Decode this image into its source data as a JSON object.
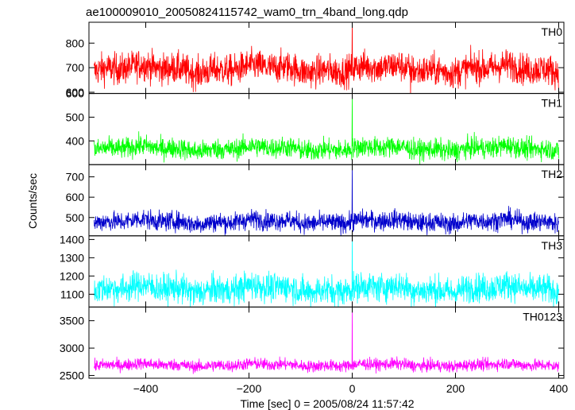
{
  "chart_data": {
    "type": "line",
    "title": "ae100009010_20050824115742_wam0_trn_4band_long.qdp",
    "xlabel": "Time [sec] 0 = 2005/08/24 11:57:42",
    "ylabel": "Counts/sec",
    "xlim": [
      -510,
      410
    ],
    "x_ticks": [
      -400,
      -200,
      0,
      200,
      400
    ],
    "x_start": -500,
    "x_end": 400,
    "x_step": 0.5,
    "grid": false,
    "panels": [
      {
        "name": "TH0",
        "color": "#ff0000",
        "ylim": [
          595,
          885
        ],
        "y_ticks": [
          600,
          700,
          800
        ],
        "baseline": 695,
        "noise": 32,
        "peak": {
          "x": 0,
          "y": 900
        },
        "dip": {
          "x": 113,
          "y": 580
        }
      },
      {
        "name": "TH1",
        "color": "#00ff00",
        "ylim": [
          300,
          600
        ],
        "y_ticks": [
          400,
          500,
          600
        ],
        "baseline": 368,
        "noise": 22,
        "peak": {
          "x": 0,
          "y": 595
        }
      },
      {
        "name": "TH2",
        "color": "#0000cc",
        "ylim": [
          410,
          760
        ],
        "y_ticks": [
          500,
          600,
          700
        ],
        "baseline": 480,
        "noise": 24,
        "peak": {
          "x": 0,
          "y": 760
        }
      },
      {
        "name": "TH3",
        "color": "#00ffff",
        "ylim": [
          1030,
          1420
        ],
        "y_ticks": [
          1100,
          1200,
          1300,
          1400
        ],
        "baseline": 1130,
        "noise": 40,
        "peak": {
          "x": 0,
          "y": 1420
        }
      },
      {
        "name": "TH0123",
        "color": "#ff00ff",
        "ylim": [
          2450,
          3750
        ],
        "y_ticks": [
          2500,
          3000,
          3500
        ],
        "baseline": 2690,
        "noise": 55,
        "peak": {
          "x": 0,
          "y": 3750
        }
      }
    ]
  }
}
